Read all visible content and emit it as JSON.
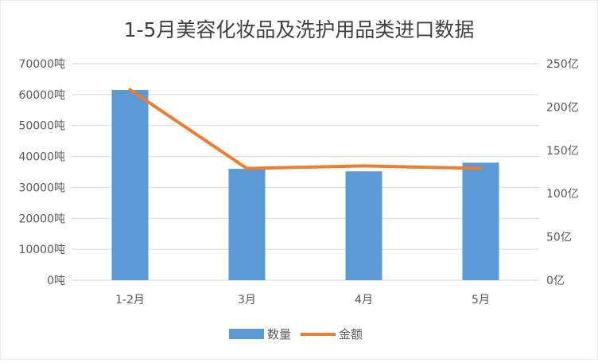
{
  "chart_data": {
    "type": "bar",
    "title": "1-5月美容化妆品及洗护用品类进口数据",
    "categories": [
      "1-2月",
      "3月",
      "4月",
      "5月"
    ],
    "series": [
      {
        "name": "数量",
        "type": "bar",
        "axis": "left",
        "values": [
          61500,
          36000,
          35200,
          38000
        ],
        "color": "#5b9bd5"
      },
      {
        "name": "金额",
        "type": "line",
        "axis": "right",
        "values": [
          220,
          129,
          132,
          129
        ],
        "color": "#ed7d31"
      }
    ],
    "y_left": {
      "ticks": [
        "0吨",
        "10000吨",
        "20000吨",
        "30000吨",
        "40000吨",
        "50000吨",
        "60000吨",
        "70000吨"
      ],
      "ylim": [
        0,
        70000
      ]
    },
    "y_right": {
      "ticks": [
        "0亿",
        "50亿",
        "100亿",
        "150亿",
        "200亿",
        "250亿"
      ],
      "ylim": [
        0,
        250
      ]
    },
    "grid": true,
    "legend": "bottom"
  }
}
